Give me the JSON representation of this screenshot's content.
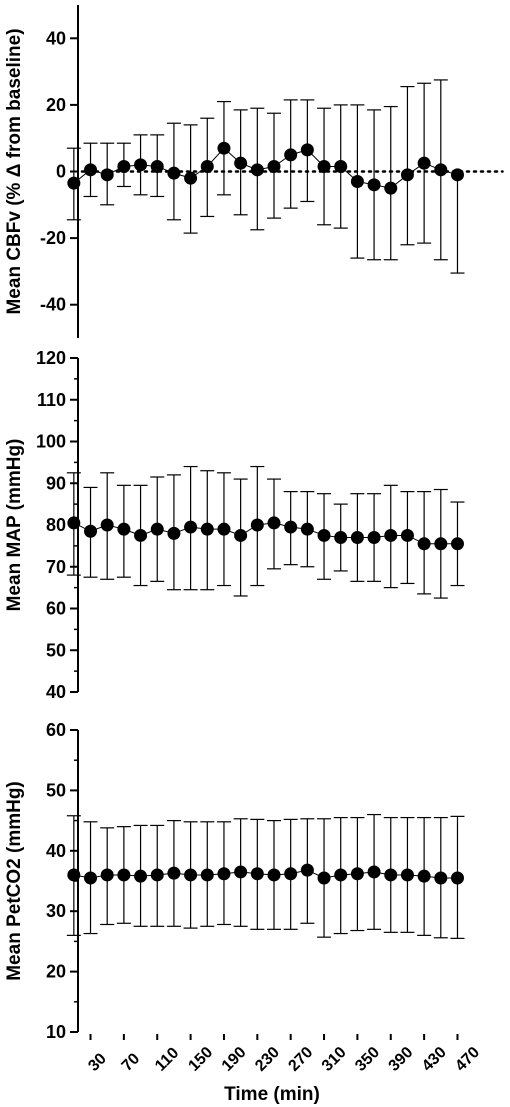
{
  "chart_data": [
    {
      "type": "scatter",
      "ylabel": "Mean CBFv  (% Δ from baseline)",
      "ylim": [
        -50,
        50
      ],
      "yticks": [
        -40,
        -20,
        0,
        20,
        40
      ],
      "reference_line": 0,
      "series": [
        {
          "x": [
            10,
            30,
            50,
            70,
            90,
            110,
            130,
            150,
            170,
            190,
            210,
            230,
            250,
            270,
            290,
            310,
            330,
            350,
            370,
            390,
            410,
            430,
            450,
            470,
            490
          ],
          "y": [
            -3.5,
            0.5,
            -1,
            1.5,
            2,
            1.5,
            -0.5,
            -2,
            1.5,
            7,
            2.5,
            0.5,
            1.5,
            5,
            6.5,
            1.5,
            1.5,
            -3,
            -4,
            -5,
            -1,
            2.5,
            0.5,
            -1,
            null
          ],
          "upper": [
            7,
            8.5,
            8.5,
            8.5,
            11,
            11,
            14.5,
            14,
            16,
            21,
            18.5,
            19,
            17.5,
            21.5,
            21.5,
            19,
            20,
            20,
            18.5,
            19.5,
            25.5,
            26.5,
            27.5,
            null,
            null
          ],
          "lower": [
            -14.5,
            -7.5,
            -10,
            -4.5,
            -7,
            -7.5,
            -14.5,
            -18.5,
            -13.5,
            -7,
            -13,
            -17.5,
            -14,
            -11,
            -9,
            -16,
            -17,
            -26,
            -26.5,
            -26.5,
            -22,
            -21.5,
            -26.5,
            -30.5,
            null
          ]
        }
      ]
    },
    {
      "type": "scatter",
      "ylabel": "Mean MAP (mmHg)",
      "ylim": [
        40,
        120
      ],
      "yticks": [
        40,
        50,
        60,
        70,
        80,
        90,
        100,
        110,
        120
      ],
      "series": [
        {
          "x": [
            10,
            30,
            50,
            70,
            90,
            110,
            130,
            150,
            170,
            190,
            210,
            230,
            250,
            270,
            290,
            310,
            330,
            350,
            370,
            390,
            410,
            430,
            450,
            470,
            490
          ],
          "y": [
            80.5,
            78.5,
            80,
            79,
            77.5,
            79,
            78,
            79.5,
            79,
            79,
            77.5,
            80,
            80.5,
            79.5,
            79,
            77.5,
            77,
            77,
            77,
            77.5,
            77.5,
            75.5,
            75.5,
            75.5,
            null
          ],
          "upper": [
            92.5,
            89,
            92.5,
            89.5,
            89.5,
            91.5,
            92,
            94,
            93,
            92.5,
            91,
            94,
            91,
            88,
            88,
            87.5,
            85,
            87.5,
            87.5,
            89.5,
            88,
            88,
            88.5,
            85.5,
            null
          ],
          "lower": [
            68,
            67.5,
            67,
            67.5,
            65.5,
            66.5,
            64.5,
            64.5,
            64.5,
            65.5,
            63,
            65.5,
            69.5,
            70.5,
            70,
            67,
            69,
            66.5,
            66.5,
            65,
            66,
            63.5,
            62.5,
            65.5,
            null
          ]
        }
      ]
    },
    {
      "type": "scatter",
      "ylabel": "Mean PetCO2 (mmHg)",
      "xlabel": "Time (min)",
      "ylim": [
        10,
        60
      ],
      "yticks": [
        10,
        20,
        30,
        40,
        50,
        60
      ],
      "xticks": [
        30,
        70,
        110,
        150,
        190,
        230,
        270,
        310,
        350,
        390,
        430,
        470
      ],
      "series": [
        {
          "x": [
            10,
            30,
            50,
            70,
            90,
            110,
            130,
            150,
            170,
            190,
            210,
            230,
            250,
            270,
            290,
            310,
            330,
            350,
            370,
            390,
            410,
            430,
            450,
            470
          ],
          "y": [
            36,
            35.5,
            36,
            36,
            35.8,
            36,
            36.3,
            36,
            36,
            36.2,
            36.5,
            36.2,
            36,
            36.2,
            36.8,
            35.5,
            36,
            36.2,
            36.5,
            36,
            36,
            35.8,
            35.5,
            35.5
          ],
          "upper": [
            45.8,
            44.8,
            43.8,
            44,
            44.2,
            44.2,
            45,
            44.8,
            44.8,
            44.8,
            45.3,
            45.2,
            45,
            45.2,
            45.3,
            45.3,
            45.5,
            45.5,
            46,
            45.5,
            45.5,
            45.5,
            45.5,
            45.7
          ],
          "lower": [
            26,
            26.3,
            27.8,
            28,
            27.5,
            27.5,
            27.5,
            27.2,
            27.5,
            27.8,
            27.5,
            27,
            27,
            27,
            28,
            25.7,
            26.3,
            26.8,
            27,
            26.5,
            26.5,
            26,
            25.6,
            25.5
          ]
        }
      ]
    }
  ]
}
